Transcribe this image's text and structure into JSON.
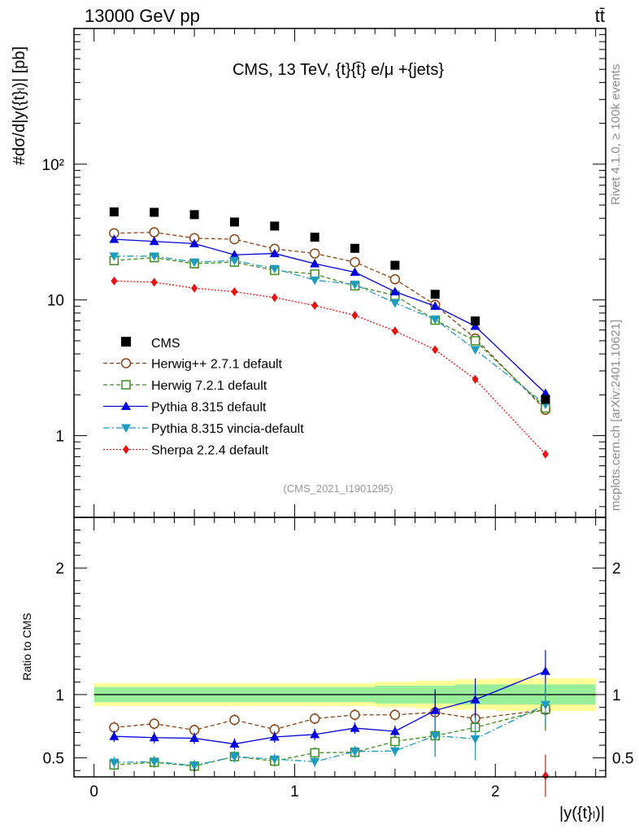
{
  "header": {
    "left": "13000 GeV pp",
    "right": "tt̄",
    "watermark_top": "Rivet 4.1.0, ≥ 100k events",
    "watermark_bottom": "mcplots.cern.ch [arXiv:2401.10621]"
  },
  "chart_data": {
    "type": "line",
    "title": "CMS, 13 TeV, {t}{t̄} e/μ +{jets}",
    "analysis_label": "(CMS_2021_I1901295)",
    "ylabel": "#dσ/d|y({t}ₗ)| [pb]",
    "xlabel": "|y({t}ₗ)|",
    "ratio_ylabel": "Ratio to CMS",
    "x": [
      0.1,
      0.3,
      0.5,
      0.7,
      0.9,
      1.1,
      1.3,
      1.5,
      1.7,
      1.9,
      2.25
    ],
    "xlim": [
      -0.1,
      2.55
    ],
    "ylim": [
      0.25,
      1000
    ],
    "yscale": "log",
    "ratio_ylim": [
      0.35,
      2.4
    ],
    "x_ticks": [
      "0",
      "1",
      "2"
    ],
    "y_ticks": [
      "1",
      "10",
      "10²"
    ],
    "ratio_ticks": [
      "0.5",
      "1",
      "2"
    ],
    "data": {
      "name": "CMS",
      "values": [
        44.5,
        44.2,
        42.5,
        37.5,
        35.0,
        29.0,
        24.0,
        18.0,
        11.0,
        7.0,
        1.85
      ],
      "band_stat": [
        0.06,
        0.06,
        0.06,
        0.06,
        0.06,
        0.06,
        0.06,
        0.07,
        0.07,
        0.08,
        0.08
      ],
      "band_total": [
        0.09,
        0.09,
        0.09,
        0.09,
        0.09,
        0.09,
        0.09,
        0.1,
        0.11,
        0.12,
        0.13
      ]
    },
    "series": [
      {
        "name": "Herwig++ 2.7.1 default",
        "color": "#8b4513",
        "marker": "circle-open",
        "dash": "dashed",
        "values": [
          31.0,
          31.5,
          28.5,
          28.0,
          23.8,
          22.0,
          19.0,
          14.2,
          9.2,
          5.2,
          1.55
        ],
        "ratio": [
          0.74,
          0.77,
          0.72,
          0.8,
          0.725,
          0.81,
          0.84,
          0.84,
          0.86,
          0.81,
          0.88
        ]
      },
      {
        "name": "Herwig 7.2.1 default",
        "color": "#3c8c1e",
        "marker": "square-open",
        "dash": "dashed",
        "values": [
          19.5,
          20.5,
          18.5,
          19.0,
          16.5,
          15.5,
          12.7,
          10.8,
          7.1,
          5.0,
          1.6
        ],
        "ratio": [
          0.445,
          0.465,
          0.435,
          0.51,
          0.475,
          0.54,
          0.545,
          0.63,
          0.675,
          0.74,
          0.885
        ]
      },
      {
        "name": "Pythia 8.315 default",
        "color": "#0000dd",
        "marker": "triangle-up",
        "dash": "solid",
        "values": [
          28.0,
          27.0,
          26.0,
          21.5,
          22.0,
          18.5,
          16.0,
          11.5,
          9.0,
          6.4,
          2.05
        ],
        "ratio": [
          0.67,
          0.66,
          0.655,
          0.61,
          0.665,
          0.685,
          0.735,
          0.71,
          0.875,
          0.96,
          1.185
        ]
      },
      {
        "name": "Pythia 8.315 vincia-default",
        "color": "#1e9bbe",
        "marker": "triangle-down",
        "dash": "dashdot",
        "values": [
          21.0,
          21.0,
          19.0,
          19.5,
          17.0,
          14.0,
          13.0,
          9.5,
          7.2,
          4.3,
          1.7
        ],
        "ratio": [
          0.465,
          0.47,
          0.44,
          0.51,
          0.49,
          0.47,
          0.55,
          0.555,
          0.675,
          0.65,
          0.92
        ]
      },
      {
        "name": "Sherpa 2.2.4 default",
        "color": "#e8120e",
        "marker": "diamond",
        "dash": "dotted",
        "values": [
          13.8,
          13.5,
          12.2,
          11.5,
          10.4,
          9.1,
          7.7,
          5.9,
          4.3,
          2.6,
          0.73
        ],
        "ratio": [
          null,
          null,
          null,
          null,
          null,
          null,
          null,
          null,
          null,
          null,
          0.36
        ]
      }
    ]
  }
}
